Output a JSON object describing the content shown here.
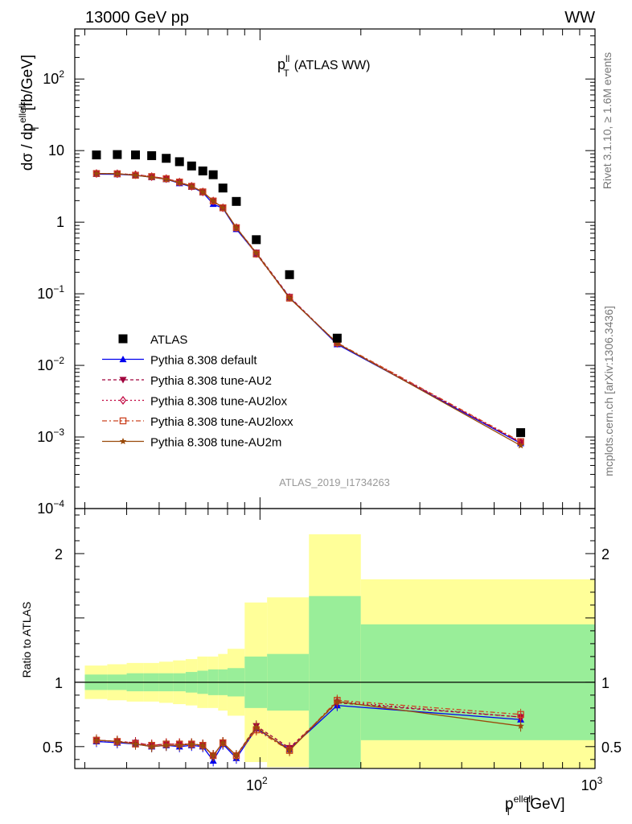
{
  "header": {
    "left": "13000 GeV pp",
    "right": "WW"
  },
  "side_labels": {
    "rivet": "Rivet 3.1.10, ≥ 1.6M events",
    "mcplots": "mcplots.cern.ch [arXiv:1306.3436]"
  },
  "chart_data": {
    "type": "scatter",
    "title_main": "p",
    "title_sup": "ll",
    "title_sub": "T",
    "title_rest": "(ATLAS WW)",
    "analysis_id": "ATLAS_2019_I1734263",
    "ylabel": "dσ / dp",
    "ylabel_sub": "T",
    "ylabel_sup": "ellell",
    "ylabel_unit": "[fb/GeV]",
    "ratio_ylabel": "Ratio to ATLAS",
    "xlabel_main": "p",
    "xlabel_sub": "T",
    "xlabel_sup": "ellell",
    "xlabel_unit": "[GeV]",
    "x_scale": "log",
    "y_scale": "log",
    "xlim": [
      28,
      1000
    ],
    "ylim": [
      0.0001,
      500
    ],
    "ratio_ylim": [
      0.33,
      2.35
    ],
    "top_y_ticks": [
      {
        "v": 0.0001,
        "m": "10",
        "e": "−4"
      },
      {
        "v": 0.001,
        "m": "10",
        "e": "−3"
      },
      {
        "v": 0.01,
        "m": "10",
        "e": "−2"
      },
      {
        "v": 0.1,
        "m": "10",
        "e": "−1"
      },
      {
        "v": 1,
        "m": "1",
        "e": ""
      },
      {
        "v": 10,
        "m": "10",
        "e": ""
      },
      {
        "v": 100,
        "m": "10",
        "e": "2"
      }
    ],
    "x_ticks": [
      {
        "v": 100,
        "m": "10",
        "e": "2"
      },
      {
        "v": 1000,
        "m": "10",
        "e": "3"
      }
    ],
    "ratio_ticks": [
      {
        "v": 0.5,
        "l": "0.5"
      },
      {
        "v": 1,
        "l": "1"
      },
      {
        "v": 2,
        "l": "2"
      }
    ],
    "bins": [
      [
        30,
        35
      ],
      [
        35,
        40
      ],
      [
        40,
        45
      ],
      [
        45,
        50
      ],
      [
        50,
        55
      ],
      [
        55,
        60
      ],
      [
        60,
        65
      ],
      [
        65,
        70
      ],
      [
        70,
        75
      ],
      [
        75,
        80
      ],
      [
        80,
        90
      ],
      [
        90,
        105
      ],
      [
        105,
        140
      ],
      [
        140,
        200
      ],
      [
        200,
        1000
      ]
    ],
    "x": [
      32.5,
      37.5,
      42.5,
      47.5,
      52.5,
      57.5,
      62.5,
      67.5,
      72.5,
      77.5,
      85,
      97.5,
      122.5,
      170,
      600
    ],
    "data": {
      "name": "ATLAS",
      "values": [
        8.7,
        8.8,
        8.7,
        8.5,
        7.8,
        7.0,
        6.1,
        5.2,
        4.6,
        3.0,
        1.95,
        0.57,
        0.185,
        0.024,
        0.00115
      ],
      "stat_band": [
        0.06,
        0.06,
        0.07,
        0.07,
        0.07,
        0.07,
        0.08,
        0.09,
        0.1,
        0.1,
        0.11,
        0.2,
        0.22,
        0.67,
        0.45
      ],
      "total_band": [
        0.13,
        0.14,
        0.15,
        0.15,
        0.16,
        0.17,
        0.18,
        0.2,
        0.2,
        0.22,
        0.26,
        0.62,
        0.66,
        1.15,
        0.8
      ]
    },
    "series": [
      {
        "name": "Pythia 8.308 default",
        "color": "#0000ee",
        "marker": "triangle-up",
        "dash": "",
        "ratio": [
          0.54,
          0.53,
          0.52,
          0.5,
          0.51,
          0.5,
          0.51,
          0.5,
          0.39,
          0.52,
          0.41,
          0.64,
          0.48,
          0.82,
          0.71
        ]
      },
      {
        "name": "Pythia 8.308 tune-AU2",
        "color": "#a0003c",
        "marker": "triangle-down",
        "dash": "4,3",
        "ratio": [
          0.55,
          0.54,
          0.53,
          0.51,
          0.52,
          0.52,
          0.52,
          0.51,
          0.43,
          0.53,
          0.43,
          0.66,
          0.49,
          0.84,
          0.73
        ]
      },
      {
        "name": "Pythia 8.308 tune-AU2lox",
        "color": "#c0003c",
        "marker": "diamond-open",
        "dash": "2,3",
        "ratio": [
          0.55,
          0.54,
          0.53,
          0.51,
          0.52,
          0.52,
          0.52,
          0.51,
          0.43,
          0.53,
          0.43,
          0.64,
          0.48,
          0.85,
          0.73
        ]
      },
      {
        "name": "Pythia 8.308 tune-AU2loxx",
        "color": "#cc4422",
        "marker": "square-open",
        "dash": "6,3,2,3",
        "ratio": [
          0.55,
          0.54,
          0.52,
          0.51,
          0.52,
          0.52,
          0.52,
          0.51,
          0.43,
          0.53,
          0.43,
          0.63,
          0.47,
          0.86,
          0.75
        ]
      },
      {
        "name": "Pythia 8.308 tune-AU2m",
        "color": "#9a4a0a",
        "marker": "star",
        "dash": "",
        "ratio": [
          0.55,
          0.54,
          0.52,
          0.5,
          0.51,
          0.51,
          0.52,
          0.51,
          0.43,
          0.53,
          0.43,
          0.65,
          0.47,
          0.85,
          0.66
        ]
      }
    ],
    "band_colors": {
      "stat": "#99ee99",
      "total": "#ffff99"
    },
    "legend_position": "lower-left"
  }
}
